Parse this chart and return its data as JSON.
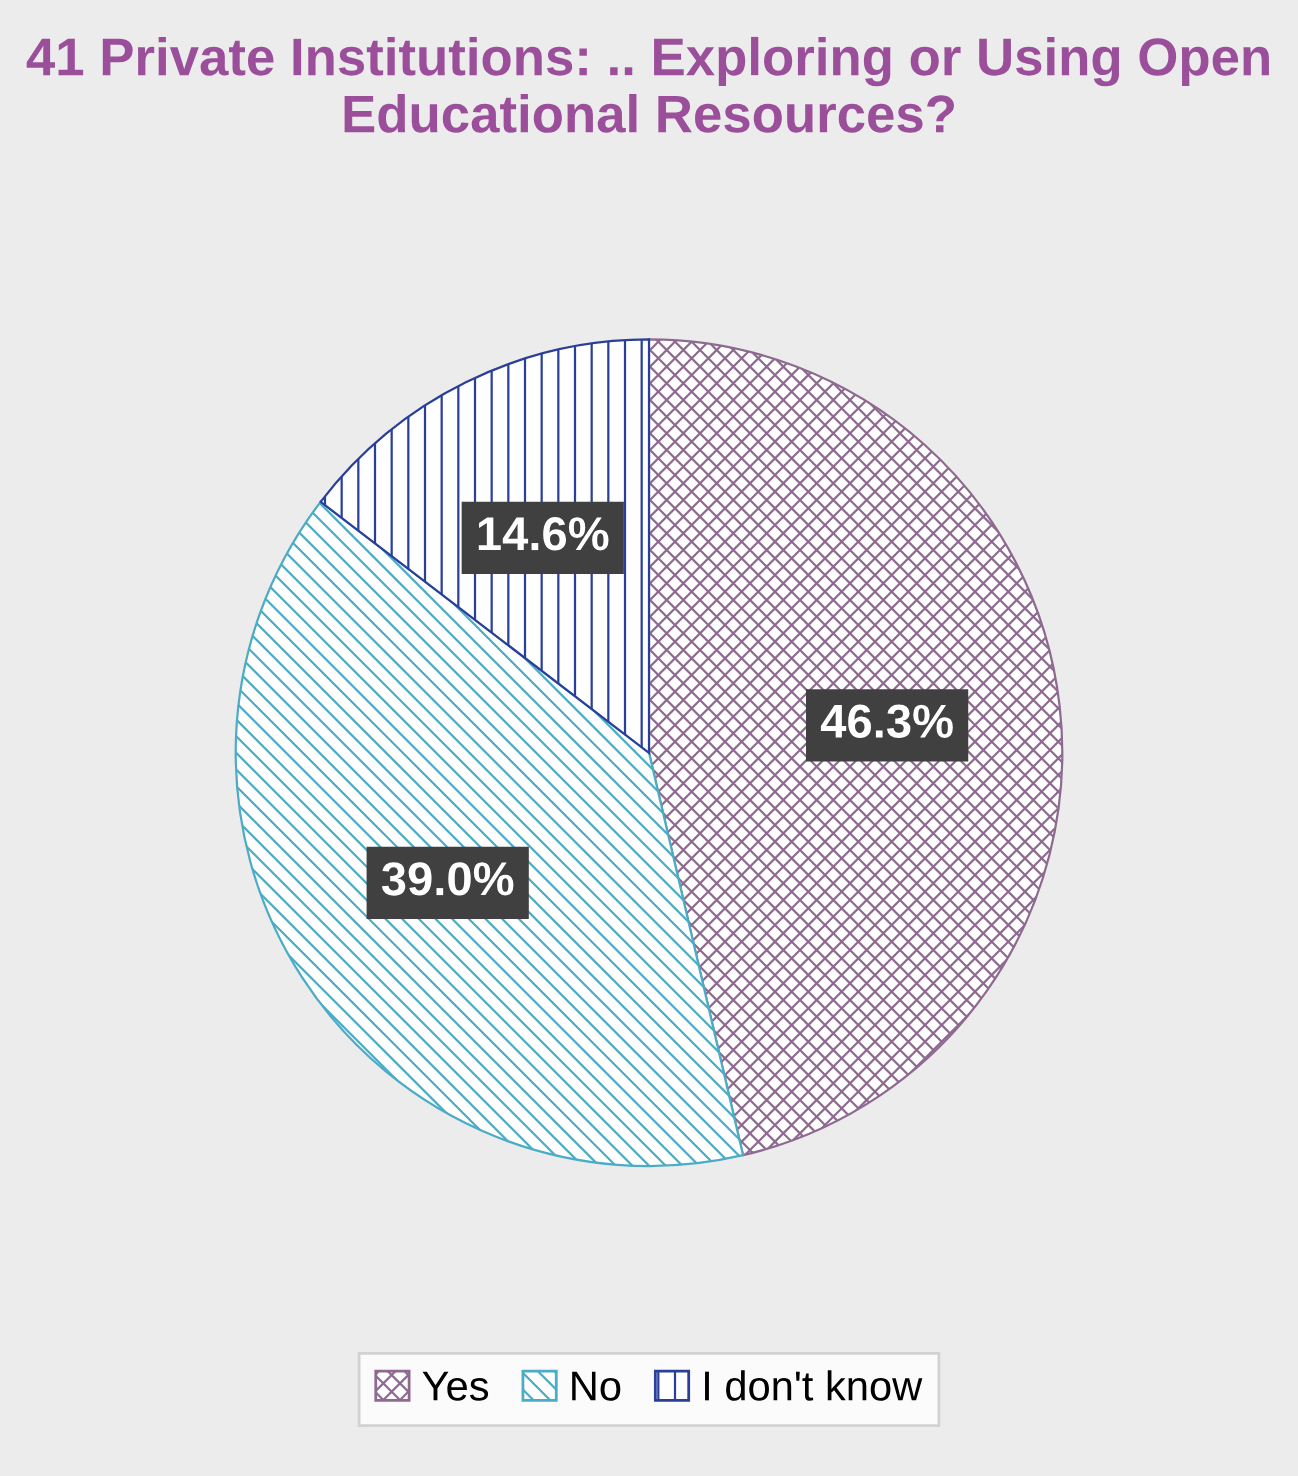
{
  "chart_data": {
    "type": "pie",
    "title": "41 Private Institutions: .. Exploring or Using Open Educational Resources?",
    "categories": [
      "Yes",
      "No",
      "I don't know"
    ],
    "values": [
      46.3,
      39.0,
      14.6
    ],
    "colors": [
      "#8e6a91",
      "#4bacc6",
      "#2a3f9a"
    ],
    "value_labels": [
      "46.3%",
      "39.0%",
      "14.6%"
    ],
    "legend": "bottom"
  }
}
